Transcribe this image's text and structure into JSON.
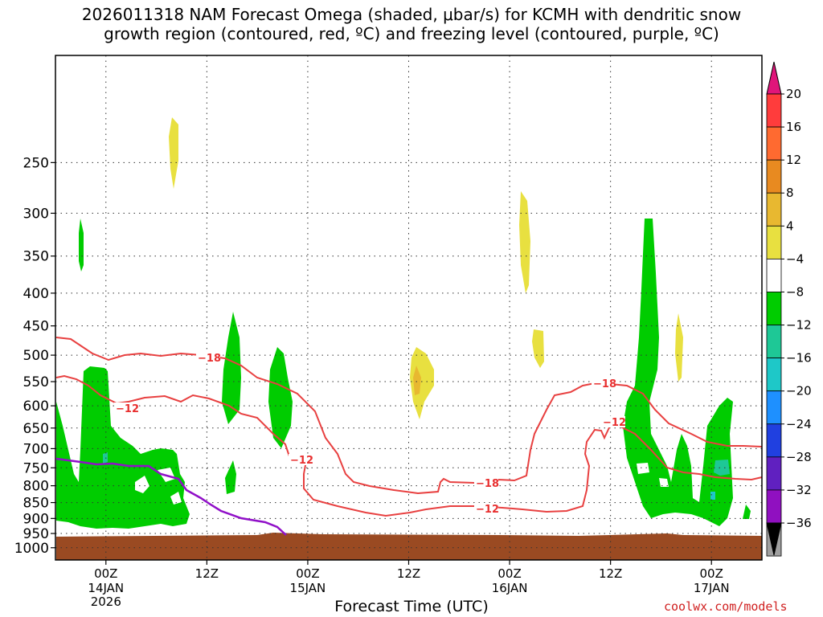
{
  "title_line1": "2026011318 NAM Forecast Omega (shaded, μbar/s) for KCMH with dendritic snow",
  "title_line2": "growth region (contoured, red, ºC) and freezing level (contoured, purple, ºC)",
  "xlabel": "Forecast Time (UTC)",
  "credit": "coolwx.com/models",
  "chart_data": {
    "type": "heatmap",
    "y_axis": {
      "label": "",
      "scale": "log-pressure",
      "inverted": true,
      "ticks": [
        250,
        300,
        350,
        400,
        450,
        500,
        550,
        600,
        650,
        700,
        750,
        800,
        850,
        900,
        950,
        1000
      ]
    },
    "x_axis": {
      "ticks": [
        {
          "hour": 6,
          "label": "00Z",
          "sub1": "14JAN",
          "sub2": "2026"
        },
        {
          "hour": 18,
          "label": "12Z",
          "sub1": "",
          "sub2": ""
        },
        {
          "hour": 30,
          "label": "00Z",
          "sub1": "15JAN",
          "sub2": ""
        },
        {
          "hour": 42,
          "label": "12Z",
          "sub1": "",
          "sub2": ""
        },
        {
          "hour": 54,
          "label": "00Z",
          "sub1": "16JAN",
          "sub2": ""
        },
        {
          "hour": 66,
          "label": "12Z",
          "sub1": "",
          "sub2": ""
        },
        {
          "hour": 78,
          "label": "00Z",
          "sub1": "17JAN",
          "sub2": ""
        }
      ],
      "range_hours": [
        0,
        84
      ]
    },
    "grid": true,
    "colorbar": {
      "levels": [
        "20",
        "16",
        "12",
        "8",
        "4",
        "−4",
        "−8",
        "−12",
        "−16",
        "−20",
        "−24",
        "−28",
        "−32",
        "−36"
      ],
      "colors": [
        "#ff3c3c",
        "#ff6a30",
        "#e88a20",
        "#e8b830",
        "#e8e040",
        "#ffffff",
        "#00cc00",
        "#1ec896",
        "#1ec8c8",
        "#1e90ff",
        "#2040e0",
        "#6020c0",
        "#9010c0",
        "#a0a0a0",
        "#000000"
      ],
      "top_color": "#e0157a"
    },
    "series": [
      {
        "name": "",
        "kind": "omega-shading",
        "units": "μbar/s"
      },
      {
        "name": "",
        "kind": "dendritic-contour",
        "color": "#e84040",
        "labels": [
          "−18",
          "−12",
          "−12",
          "−18",
          "−18",
          "−12",
          "−12"
        ]
      },
      {
        "name": "",
        "kind": "freezing-level",
        "color": "#9010c8"
      }
    ],
    "ground_color": "#9a4a22"
  }
}
